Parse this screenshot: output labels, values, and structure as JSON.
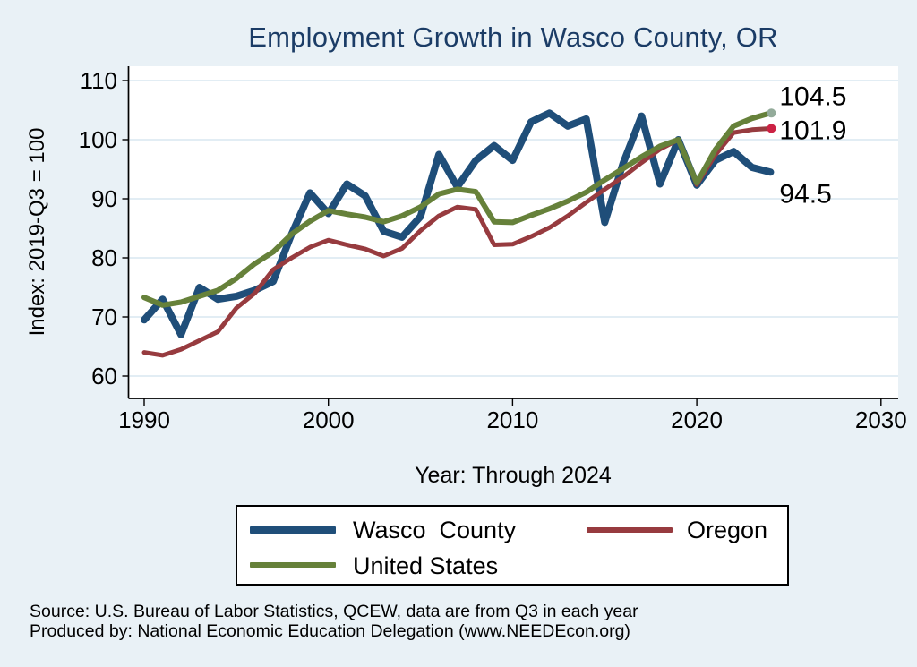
{
  "title": "Employment Growth in Wasco County, OR",
  "y_axis": {
    "title": "Index: 2019-Q3 = 100",
    "ticks": [
      110,
      100,
      90,
      80,
      70,
      60
    ]
  },
  "x_axis": {
    "title": "Year: Through 2024",
    "ticks": [
      1990,
      2000,
      2010,
      2020,
      2030
    ]
  },
  "legend": {
    "items": [
      {
        "label": "Wasco  County",
        "color": "#1F4E79"
      },
      {
        "label": "Oregon",
        "color": "#973B3F"
      },
      {
        "label": "United States",
        "color": "#66813A"
      }
    ]
  },
  "source": {
    "line1": "Source: U.S. Bureau of Labor Statistics, QCEW, data are from Q3 in each year",
    "line2": "Produced by: National Economic Education Delegation (www.NEEDEcon.org)"
  },
  "colors": {
    "background": "#E9F1F6",
    "plot_background": "#FFFFFF",
    "gridline": "#D9E7F1",
    "axis": "#000000",
    "title": "#1B3C66",
    "wasco": "#1F4E79",
    "oregon": "#973B3F",
    "us": "#66813A",
    "oregon_end_dot": "#CC2244",
    "us_end_dot": "#93AB9A"
  },
  "chart_data": {
    "type": "line",
    "title": "Employment Growth in Wasco County, OR",
    "xlabel": "Year: Through 2024",
    "ylabel": "Index: 2019-Q3 = 100",
    "xlim": [
      1989.1,
      2030.9
    ],
    "ylim": [
      60,
      110
    ],
    "grid": "horizontal",
    "legend_position": "bottom",
    "x": [
      1990,
      1991,
      1992,
      1993,
      1994,
      1995,
      1996,
      1997,
      1998,
      1999,
      2000,
      2001,
      2002,
      2003,
      2004,
      2005,
      2006,
      2007,
      2008,
      2009,
      2010,
      2011,
      2012,
      2013,
      2014,
      2015,
      2016,
      2017,
      2018,
      2019,
      2020,
      2021,
      2022,
      2023,
      2024
    ],
    "series": [
      {
        "name": "Wasco County",
        "color": "#1F4E79",
        "line_width": 8,
        "end_label": "94.5",
        "values": [
          69.5,
          73,
          67,
          75,
          73,
          73.5,
          74.5,
          76,
          84,
          91,
          87.5,
          92.5,
          90.5,
          84.5,
          83.5,
          87,
          97.5,
          92,
          96.5,
          99,
          96.5,
          103,
          104.5,
          102.3,
          103.5,
          86,
          96,
          104,
          92.5,
          100,
          92.3,
          96.5,
          98,
          95.3,
          94.5
        ]
      },
      {
        "name": "Oregon",
        "color": "#973B3F",
        "line_width": 5,
        "end_label": "101.9",
        "end_marker_color": "#CC2244",
        "values": [
          64,
          63.5,
          64.5,
          66,
          67.5,
          71.5,
          74,
          78,
          80,
          81.8,
          83,
          82.2,
          81.5,
          80.3,
          81.6,
          84.6,
          87.1,
          88.6,
          88.2,
          82.2,
          82.3,
          83.6,
          85.1,
          87.1,
          89.4,
          91.6,
          93.7,
          96.1,
          98.4,
          100,
          92.4,
          97.4,
          101.2,
          101.7,
          101.9
        ]
      },
      {
        "name": "United States",
        "color": "#66813A",
        "line_width": 6,
        "end_label": "104.5",
        "end_marker_color": "#93AB9A",
        "values": [
          73.3,
          72,
          72.5,
          73.5,
          74.5,
          76.5,
          79,
          81,
          84,
          86.2,
          88,
          87.4,
          86.9,
          86.1,
          87.1,
          88.6,
          90.8,
          91.6,
          91.2,
          86.1,
          86,
          87.2,
          88.3,
          89.6,
          91.1,
          93.2,
          95.1,
          97.1,
          98.9,
          100,
          92.7,
          98.3,
          102.3,
          103.6,
          104.5
        ]
      }
    ]
  }
}
